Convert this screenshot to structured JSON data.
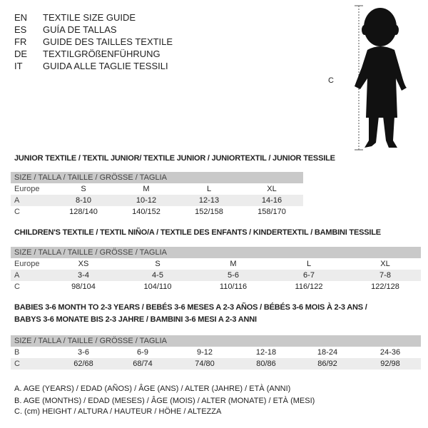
{
  "header": [
    {
      "code": "EN",
      "text": "TEXTILE SIZE GUIDE"
    },
    {
      "code": "ES",
      "text": "GUÍA DE TALLAS"
    },
    {
      "code": "FR",
      "text": "GUIDE DES TAILLES TEXTILE"
    },
    {
      "code": "DE",
      "text": "TEXTILGRÖßENFÜHRUNG"
    },
    {
      "code": "IT",
      "text": "GUIDA ALLE TAGLIE TESSILI"
    }
  ],
  "figure": {
    "measure_label": "C",
    "icon": "child-silhouette"
  },
  "junior": {
    "title": "JUNIOR TEXTILE / TEXTIL JUNIOR/ TEXTILE JUNIOR / JUNIORTEXTIL / JUNIOR TESSILE",
    "header": "SIZE / TALLA / TAILLE / GRÖSSE / TAGLIA",
    "rows": [
      {
        "label": "Europe",
        "cells": [
          "S",
          "M",
          "L",
          "XL"
        ]
      },
      {
        "label": "A",
        "cells": [
          "8-10",
          "10-12",
          "12-13",
          "14-16"
        ]
      },
      {
        "label": "C",
        "cells": [
          "128/140",
          "140/152",
          "152/158",
          "158/170"
        ]
      }
    ]
  },
  "children": {
    "title": "CHILDREN'S TEXTILE / TEXTIL NIÑO/A / TEXTILE DES ENFANTS / KINDERTEXTIL / BAMBINI TESSILE",
    "header": "SIZE / TALLA / TAILLE / GRÖSSE / TAGLIA",
    "rows": [
      {
        "label": "Europe",
        "cells": [
          "XS",
          "S",
          "M",
          "L",
          "XL"
        ]
      },
      {
        "label": "A",
        "cells": [
          "3-4",
          "4-5",
          "5-6",
          "6-7",
          "7-8"
        ]
      },
      {
        "label": "C",
        "cells": [
          "98/104",
          "104/110",
          "110/116",
          "116/122",
          "122/128"
        ]
      }
    ]
  },
  "babies": {
    "title_line1": "BABIES 3-6 MONTH TO 2-3 YEARS / BEBÉS 3-6 MESES A 2-3 AÑOS / BÉBÉS 3-6 MOIS À 2-3 ANS /",
    "title_line2": "BABYS 3-6 MONATE BIS 2-3 JAHRE / BAMBINI 3-6 MESI A 2-3 ANNI",
    "header": "SIZE / TALLA / TAILLE / GRÖSSE / TAGLIA",
    "rows": [
      {
        "label": "B",
        "cells": [
          "3-6",
          "6-9",
          "9-12",
          "12-18",
          "18-24",
          "24-36"
        ]
      },
      {
        "label": "C",
        "cells": [
          "62/68",
          "68/74",
          "74/80",
          "80/86",
          "86/92",
          "92/98"
        ]
      }
    ]
  },
  "legend": [
    "A. AGE (YEARS) / EDAD (AÑOS) / ÂGE (ANS) / ALTER (JAHRE) / ETÀ (ANNI)",
    "B. AGE (MONTHS) / EDAD (MESES) / ÂGE (MOIS) / ALTER (MONATE) / ETÀ (MESI)",
    "C. (cm) HEIGHT / ALTURA / HAUTEUR / HÖHE / ALTEZZA"
  ]
}
